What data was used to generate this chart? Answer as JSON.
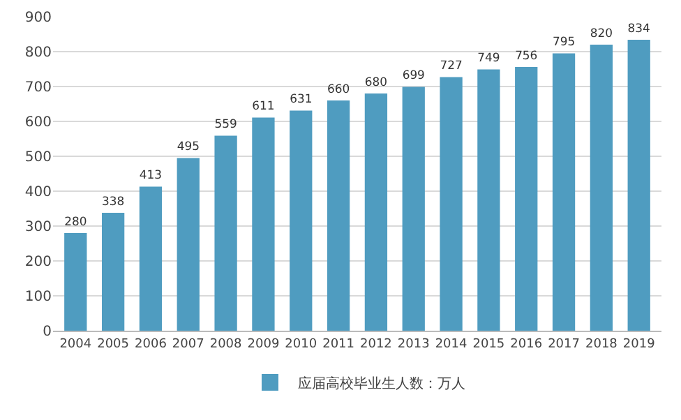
{
  "chart_data": {
    "type": "bar",
    "categories": [
      "2004",
      "2005",
      "2006",
      "2007",
      "2008",
      "2009",
      "2010",
      "2011",
      "2012",
      "2013",
      "2014",
      "2015",
      "2016",
      "2017",
      "2018",
      "2019"
    ],
    "series": [
      {
        "name": "应届高校毕业生人数：万人",
        "color": "#4f9cc0",
        "values": [
          280,
          338,
          413,
          495,
          559,
          611,
          631,
          660,
          680,
          699,
          727,
          749,
          756,
          795,
          820,
          834
        ]
      }
    ],
    "ylim": [
      0,
      900
    ],
    "yticks": [
      0,
      100,
      200,
      300,
      400,
      500,
      600,
      700,
      800,
      900
    ],
    "grid": "y",
    "legend": "bottom",
    "data_labels": true
  }
}
